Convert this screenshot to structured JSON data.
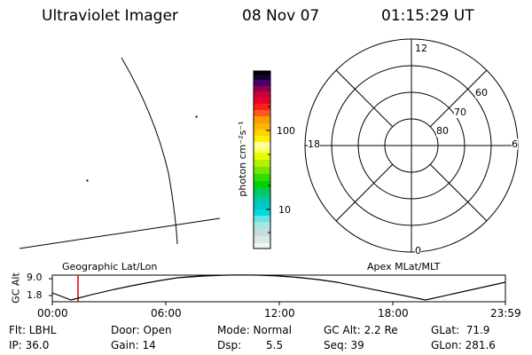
{
  "header": {
    "instrument": "Ultraviolet Imager",
    "date": "08 Nov 07",
    "time": "01:15:29 UT"
  },
  "colorbar": {
    "unit_label": "photon cm⁻²s⁻¹",
    "tick_100": "100",
    "tick_10": "10"
  },
  "polar_plot": {
    "mlt_top": "12",
    "mlt_bottom": "0",
    "mlt_left": "18",
    "mlt_right": "6",
    "lat_60": "60",
    "lat_70": "70",
    "lat_80": "80"
  },
  "panel_labels": {
    "geographic": "Geographic Lat/Lon",
    "apex": "Apex MLat/MLT"
  },
  "alt_plot": {
    "ylabel": "GC Alt",
    "y_top": "9.0",
    "y_bottom": "1.8",
    "x_ticks": [
      "00:00",
      "06:00",
      "12:00",
      "18:00",
      "23:59"
    ],
    "marker_color": "#d40000"
  },
  "footer": {
    "flt": "Flt: LBHL",
    "ip": "IP: 36.0",
    "door": "Door: Open",
    "gain": "Gain: 14",
    "mode": "Mode: Normal",
    "dsp_label": "Dsp:",
    "dsp_value": "5.5",
    "gc_alt": "GC Alt: 2.2 Re",
    "seq": "Seq: 39",
    "glat": "GLat:  71.9",
    "glon": "GLon: 281.6"
  }
}
